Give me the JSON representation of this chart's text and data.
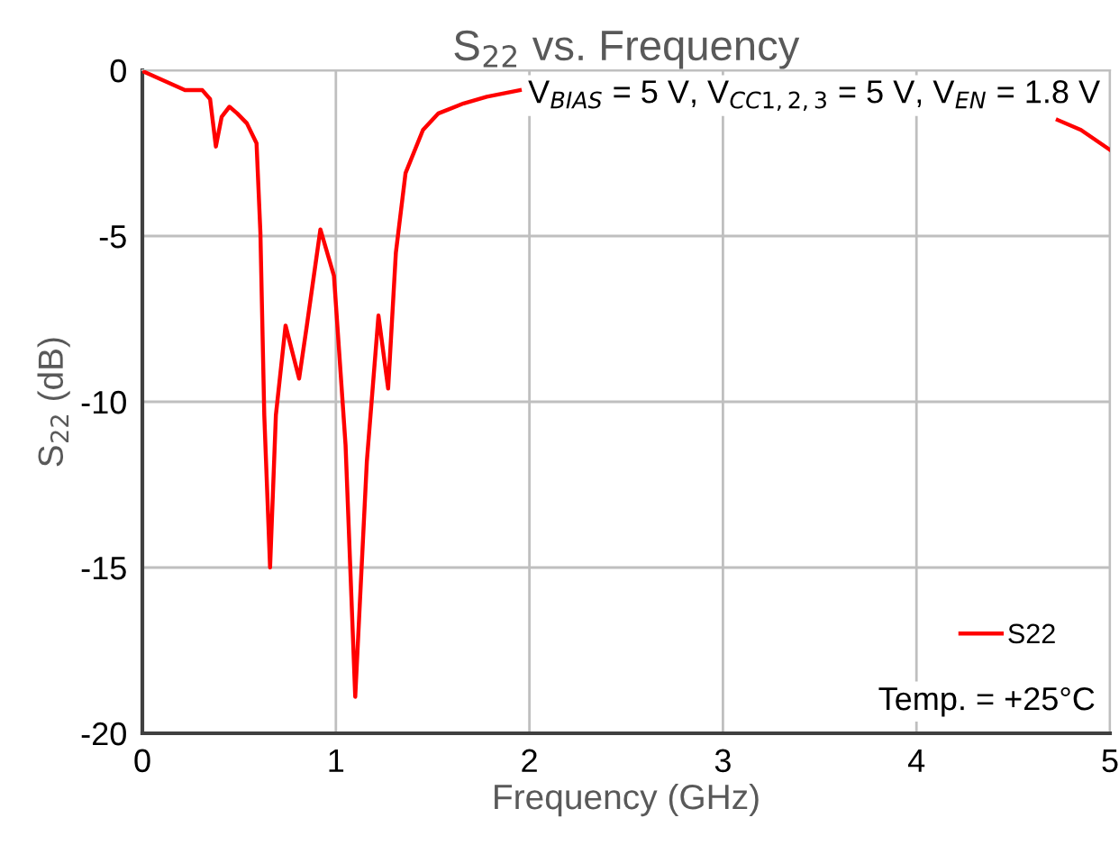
{
  "chart_data": {
    "type": "line",
    "title": "S$_{22}$ vs. Frequency",
    "xlabel": "Frequency (GHz)",
    "ylabel": "S$_{22}$ (dB)",
    "annotations": [
      "V$_{BIAS}$ = 5 V, V$_{CC1,2,3}$ = 5 V, V$_{EN}$ = 1.8 V",
      "Temp. = +25°C"
    ],
    "x": [
      0.01,
      0.22,
      0.31,
      0.35,
      0.38,
      0.41,
      0.45,
      0.49,
      0.54,
      0.59,
      0.61,
      0.63,
      0.66,
      0.69,
      0.74,
      0.81,
      0.85,
      0.92,
      0.99,
      1.05,
      1.1,
      1.16,
      1.22,
      1.27,
      1.31,
      1.36,
      1.45,
      1.53,
      1.66,
      1.78,
      1.95,
      2.0,
      4.7,
      4.73,
      4.85,
      5.0
    ],
    "series": [
      {
        "name": "S22",
        "color": "#ff0000",
        "values": [
          -0.05,
          -0.6,
          -0.6,
          -0.87,
          -2.3,
          -1.4,
          -1.1,
          -1.3,
          -1.6,
          -2.2,
          -4.9,
          -10.4,
          -15.0,
          -10.4,
          -7.7,
          -9.3,
          -7.7,
          -4.8,
          -6.2,
          -11.3,
          -18.9,
          -11.8,
          -7.4,
          -9.6,
          -5.5,
          -3.1,
          -1.8,
          -1.3,
          -1.0,
          -0.8,
          -0.6,
          null,
          null,
          -1.5,
          -1.8,
          -2.4
        ]
      }
    ],
    "xlim": [
      0,
      5
    ],
    "ylim": [
      -20,
      0
    ],
    "xticks": [
      0,
      1,
      2,
      3,
      4,
      5
    ],
    "yticks": [
      -20,
      -15,
      -10,
      -5,
      0
    ],
    "grid": true,
    "legend": "bottom right",
    "line_style": "solid",
    "marker": "none"
  }
}
